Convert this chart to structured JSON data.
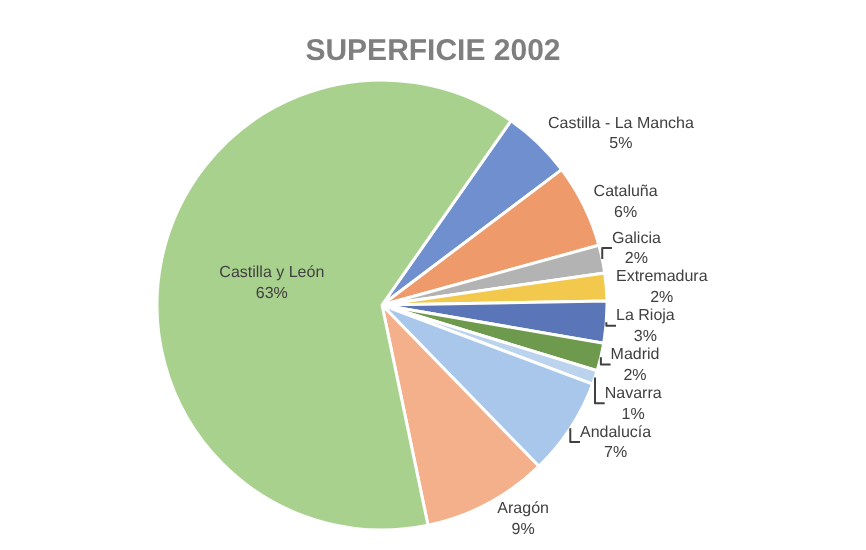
{
  "chart_data": {
    "type": "pie",
    "title": "SUPERFICIE 2002",
    "categories": [
      "Castilla - La Mancha",
      "Cataluña",
      "Galicia",
      "Extremadura",
      "La Rioja",
      "Madrid",
      "Navarra",
      "Andalucía",
      "Aragón",
      "Castilla y León"
    ],
    "values": [
      5,
      6,
      2,
      2,
      3,
      2,
      1,
      7,
      9,
      63
    ],
    "colors": [
      "#6f8fcf",
      "#ee9a6a",
      "#b3b3b3",
      "#f2c94c",
      "#5a76b8",
      "#6e9a4e",
      "#bcd3ee",
      "#a9c7ea",
      "#f3b08b",
      "#a9d18e"
    ],
    "value_labels": [
      "5%",
      "6%",
      "2%",
      "2%",
      "3%",
      "2%",
      "1%",
      "7%",
      "9%",
      "63%"
    ],
    "legend": false
  }
}
